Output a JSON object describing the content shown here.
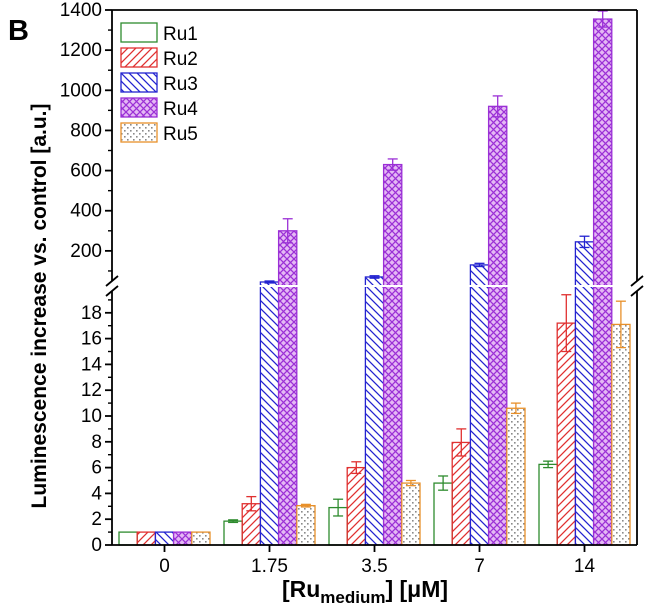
{
  "panel_label": "B",
  "chart_data": {
    "type": "bar",
    "categories": [
      "0",
      "1.75",
      "3.5",
      "7",
      "14"
    ],
    "series": [
      {
        "name": "Ru1",
        "values": [
          1.0,
          1.85,
          2.9,
          4.8,
          6.25
        ],
        "errors": [
          0.0,
          0.1,
          0.65,
          0.55,
          0.25
        ],
        "color": "#2e8b2e",
        "pattern": "none"
      },
      {
        "name": "Ru2",
        "values": [
          1.0,
          3.2,
          6.0,
          7.95,
          17.2
        ],
        "errors": [
          0.0,
          0.55,
          0.45,
          1.05,
          2.2
        ],
        "color": "#e03030",
        "pattern": "diag-up"
      },
      {
        "name": "Ru3",
        "values": [
          1.0,
          45,
          70,
          130,
          245
        ],
        "errors": [
          0.0,
          5,
          6,
          8,
          28
        ],
        "color": "#2323d0",
        "pattern": "diag-down"
      },
      {
        "name": "Ru4",
        "values": [
          1.0,
          300,
          630,
          920,
          1355
        ],
        "errors": [
          0.0,
          60,
          28,
          52,
          40
        ],
        "color": "#9b30d6",
        "pattern": "crosshatch"
      },
      {
        "name": "Ru5",
        "values": [
          1.0,
          3.05,
          4.8,
          10.6,
          17.1
        ],
        "errors": [
          0.0,
          0.1,
          0.2,
          0.4,
          1.8
        ],
        "color": "#e8902a",
        "pattern": "dots"
      }
    ],
    "xlabel": "[Ru",
    "xlabel_sub": "medium",
    "xlabel_tail": "] [μM]",
    "ylabel": "Luminescence increase vs. control [a.u.]",
    "y_lower": {
      "range": [
        0,
        20
      ],
      "ticks": [
        "0",
        "2",
        "4",
        "6",
        "8",
        "10",
        "12",
        "14",
        "16",
        "18"
      ],
      "tick_values": [
        0,
        2,
        4,
        6,
        8,
        10,
        12,
        14,
        16,
        18
      ]
    },
    "y_upper": {
      "range": [
        30,
        1400
      ],
      "ticks": [
        "200",
        "400",
        "600",
        "800",
        "1000",
        "1200",
        "1400"
      ],
      "tick_values": [
        200,
        400,
        600,
        800,
        1000,
        1200,
        1400
      ]
    },
    "axis_break": true,
    "legend_position": "top-left",
    "grid": false
  }
}
